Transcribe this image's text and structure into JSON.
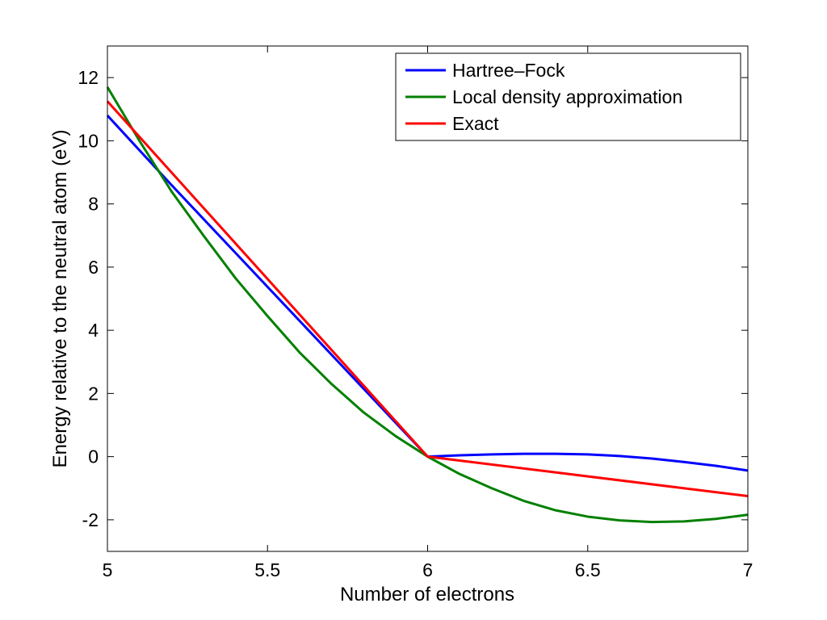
{
  "chart_data": {
    "type": "line",
    "title": "",
    "xlabel": "Number of electrons",
    "ylabel": "Energy relative to the neutral atom (eV)",
    "xlim": [
      5,
      7
    ],
    "ylim": [
      -3,
      13
    ],
    "xticks": [
      5,
      5.5,
      6,
      6.5,
      7
    ],
    "xtick_labels": [
      "5",
      "5.5",
      "6",
      "6.5",
      "7"
    ],
    "yticks": [
      -2,
      0,
      2,
      4,
      6,
      8,
      10,
      12
    ],
    "ytick_labels": [
      "-2",
      "0",
      "2",
      "4",
      "6",
      "8",
      "10",
      "12"
    ],
    "grid": false,
    "legend_position": "top-right",
    "series": [
      {
        "name": "Hartree–Fock",
        "color": "#0000ff",
        "x": [
          5,
          5.2,
          5.4,
          5.6,
          5.8,
          6,
          6.1,
          6.2,
          6.3,
          6.4,
          6.5,
          6.6,
          6.7,
          6.8,
          6.9,
          7
        ],
        "y": [
          10.8,
          8.6,
          6.45,
          4.3,
          2.15,
          0,
          0.04,
          0.07,
          0.09,
          0.09,
          0.07,
          0.02,
          -0.06,
          -0.17,
          -0.29,
          -0.44
        ]
      },
      {
        "name": "Local density approximation",
        "color": "#008000",
        "x": [
          5,
          5.1,
          5.2,
          5.3,
          5.4,
          5.5,
          5.6,
          5.7,
          5.8,
          5.9,
          6,
          6.1,
          6.2,
          6.3,
          6.4,
          6.5,
          6.6,
          6.7,
          6.8,
          6.9,
          7
        ],
        "y": [
          11.7,
          10.0,
          8.4,
          7.0,
          5.65,
          4.45,
          3.3,
          2.3,
          1.4,
          0.65,
          0,
          -0.55,
          -1.0,
          -1.4,
          -1.7,
          -1.9,
          -2.02,
          -2.07,
          -2.05,
          -1.97,
          -1.84
        ]
      },
      {
        "name": "Exact",
        "color": "#ff0000",
        "x": [
          5,
          6,
          7
        ],
        "y": [
          11.25,
          0,
          -1.25
        ]
      }
    ]
  }
}
